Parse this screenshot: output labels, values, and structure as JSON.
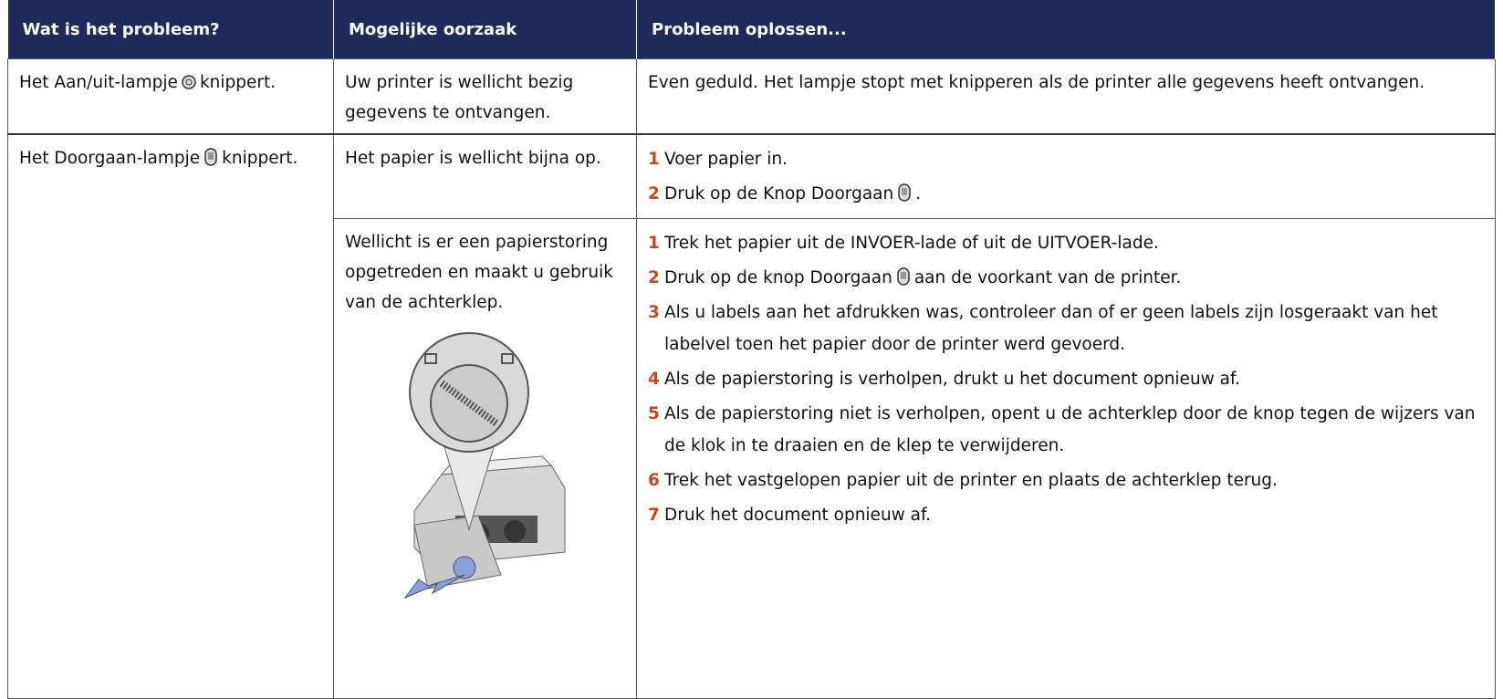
{
  "header": [
    "Wat is het probleem?",
    "Mogelijke oorzaak",
    "Probleem oplossen..."
  ],
  "rows": [
    {
      "problem": {
        "before": "Het Aan/uit-lampje",
        "after": "knippert."
      },
      "causes": [
        {
          "cause": "Uw printer is wellicht bezig gegevens te ontvangen.",
          "solution": "Even geduld. Het lampje stopt met knipperen als de printer alle gegevens heeft ontvangen."
        }
      ]
    },
    {
      "problem": {
        "before": "Het Doorgaan-lampje",
        "after": "knippert."
      },
      "causes": [
        {
          "cause": "Het papier is wellicht bijna op.",
          "steps": [
            {
              "number": "1",
              "before": "Voer papier in."
            },
            {
              "number": "2",
              "before": "Druk op de Knop Doorgaan",
              "after": "."
            }
          ]
        },
        {
          "cause": "Wellicht is er een papierstoring opgetreden en maakt u gebruik van de achterklep.",
          "steps": [
            {
              "number": "1",
              "before": "Trek het papier uit de INVOER-lade of uit de UITVOER-lade."
            },
            {
              "number": "2",
              "before": "Druk op de knop Doorgaan",
              "after": "aan de voorkant van de printer."
            },
            {
              "number": "3",
              "before": "Als u labels aan het afdrukken was, controleer dan of er geen labels zijn losgeraakt van het labelvel toen het papier door de printer werd gevoerd."
            },
            {
              "number": "4",
              "before": "Als de papierstoring is verholpen, drukt u het document opnieuw af."
            },
            {
              "number": "5",
              "before": "Als de papierstoring niet is verholpen, opent u de achterklep door de knop tegen de wijzers van de klok in te draaien en de klep te verwijderen."
            },
            {
              "number": "6",
              "before": "Trek het vastgelopen papier uit de printer en plaats de achterklep terug."
            },
            {
              "number": "7",
              "before": "Druk het document opnieuw af."
            }
          ]
        }
      ]
    }
  ]
}
